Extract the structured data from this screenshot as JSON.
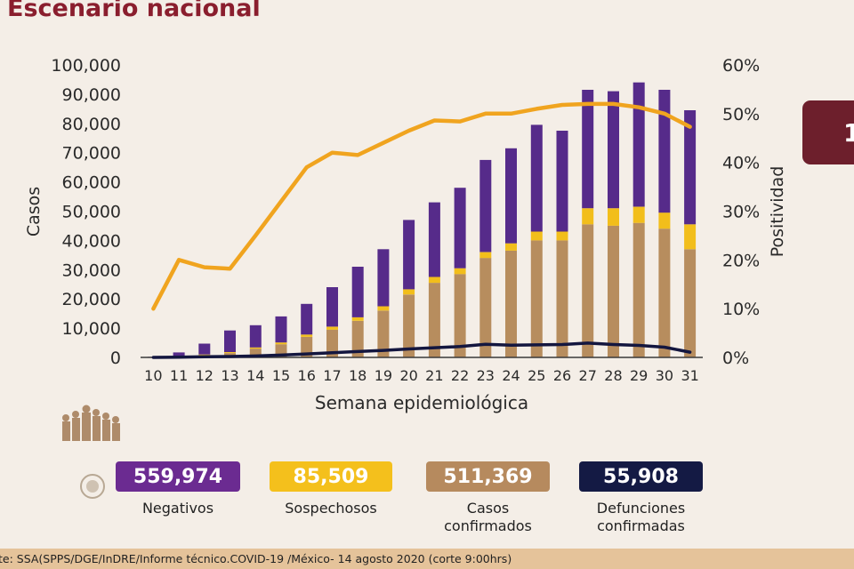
{
  "header": {
    "title": "Escenario nacional",
    "tab_text": "1"
  },
  "chart_data": {
    "type": "bar",
    "stacked": true,
    "xlabel": "Semana epidemiológica",
    "ylabel": "Casos",
    "y2label": "Positividad",
    "ylim": [
      0,
      100000
    ],
    "y2lim": [
      0,
      60
    ],
    "yticks": [
      "0",
      "10,000",
      "20,000",
      "30,000",
      "40,000",
      "50,000",
      "60,000",
      "70,000",
      "80,000",
      "90,000",
      "100,000"
    ],
    "y2ticks": [
      "0%",
      "10%",
      "20%",
      "30%",
      "40%",
      "50%",
      "60%"
    ],
    "categories": [
      "10",
      "11",
      "12",
      "13",
      "14",
      "15",
      "16",
      "17",
      "18",
      "19",
      "20",
      "21",
      "22",
      "23",
      "24",
      "25",
      "26",
      "27",
      "28",
      "29",
      "30",
      "31"
    ],
    "series": [
      {
        "name": "Casos confirmados",
        "color": "#b78d5e",
        "values": [
          100,
          300,
          800,
          1500,
          3000,
          4500,
          7000,
          9500,
          12500,
          16000,
          21500,
          25500,
          28500,
          34000,
          36500,
          40000,
          40000,
          45500,
          45000,
          46000,
          44000,
          37000
        ]
      },
      {
        "name": "Sospechosos",
        "color": "#f2be1b",
        "values": [
          0,
          100,
          200,
          300,
          400,
          600,
          800,
          1000,
          1200,
          1500,
          1800,
          2000,
          2000,
          2000,
          2500,
          3000,
          3000,
          5500,
          6000,
          5500,
          5500,
          8500
        ]
      },
      {
        "name": "Negativos",
        "color": "#562b8a",
        "values": [
          100,
          1300,
          3700,
          7400,
          7600,
          8900,
          10500,
          13500,
          17300,
          19500,
          23700,
          25500,
          27500,
          31500,
          32500,
          36500,
          34500,
          40500,
          40000,
          42500,
          42000,
          39000
        ]
      }
    ],
    "lines": [
      {
        "name": "Positividad",
        "axis": "right",
        "color": "#f0a41f",
        "values": [
          10,
          20,
          18.5,
          18.2,
          25,
          32,
          39,
          42,
          41.5,
          44,
          46.5,
          48.6,
          48.4,
          50,
          50,
          51,
          51.8,
          52,
          52,
          51.3,
          50,
          47.3
        ]
      },
      {
        "name": "Defunciones confirmadas",
        "axis": "left",
        "color": "#13163f",
        "values": [
          0,
          100,
          200,
          300,
          500,
          800,
          1200,
          1600,
          2000,
          2400,
          2900,
          3300,
          3700,
          4500,
          4200,
          4300,
          4400,
          4900,
          4400,
          4100,
          3500,
          1800
        ]
      }
    ]
  },
  "kpis": [
    {
      "value": "559,974",
      "label": "Negativos",
      "bg": "#6b2b91",
      "fg": "#ffffff"
    },
    {
      "value": "85,509",
      "label": "Sospechosos",
      "bg": "#f4c01c",
      "fg": "#ffffff"
    },
    {
      "value": "511,369",
      "label": "Casos confirmados",
      "bg": "#b68a5e",
      "fg": "#ffffff"
    },
    {
      "value": "55,908",
      "label": "Defunciones confirmadas",
      "bg": "#141a44",
      "fg": "#ffffff"
    }
  ],
  "footer": {
    "source": "te: SSA(SPPS/DGE/InDRE/Informe técnico.COVID-19 /México- 14 agosto 2020 (corte 9:00hrs)"
  }
}
